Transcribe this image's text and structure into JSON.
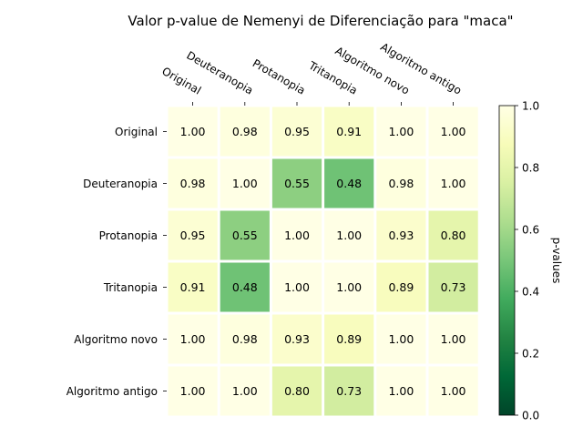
{
  "chart_data": {
    "type": "heatmap",
    "title": "Valor p-value de Nemenyi de Diferenciação para \"maca\"",
    "x_categories": [
      "Original",
      "Deuteranopia",
      "Protanopia",
      "Tritanopia",
      "Algoritmo novo",
      "Algoritmo antigo"
    ],
    "y_categories": [
      "Original",
      "Deuteranopia",
      "Protanopia",
      "Tritanopia",
      "Algoritmo novo",
      "Algoritmo antigo"
    ],
    "values": [
      [
        1.0,
        0.98,
        0.95,
        0.91,
        1.0,
        1.0
      ],
      [
        0.98,
        1.0,
        0.55,
        0.48,
        0.98,
        1.0
      ],
      [
        0.95,
        0.55,
        1.0,
        1.0,
        0.93,
        0.8
      ],
      [
        0.91,
        0.48,
        1.0,
        1.0,
        0.89,
        0.73
      ],
      [
        1.0,
        0.98,
        0.93,
        0.89,
        1.0,
        1.0
      ],
      [
        1.0,
        1.0,
        0.8,
        0.73,
        1.0,
        1.0
      ]
    ],
    "value_labels": [
      [
        "1.00",
        "0.98",
        "0.95",
        "0.91",
        "1.00",
        "1.00"
      ],
      [
        "0.98",
        "1.00",
        "0.55",
        "0.48",
        "0.98",
        "1.00"
      ],
      [
        "0.95",
        "0.55",
        "1.00",
        "1.00",
        "0.93",
        "0.80"
      ],
      [
        "0.91",
        "0.48",
        "1.00",
        "1.00",
        "0.89",
        "0.73"
      ],
      [
        "1.00",
        "0.98",
        "0.93",
        "0.89",
        "1.00",
        "1.00"
      ],
      [
        "1.00",
        "1.00",
        "0.80",
        "0.73",
        "1.00",
        "1.00"
      ]
    ],
    "colorbar": {
      "label": "p-values",
      "range": [
        0,
        1
      ],
      "ticks": [
        0.0,
        0.2,
        0.4,
        0.6,
        0.8,
        1.0
      ],
      "tick_labels": [
        "0.0",
        "0.2",
        "0.4",
        "0.6",
        "0.8",
        "1.0"
      ],
      "colormap": "YlGn_r",
      "stops": [
        "#004529",
        "#006837",
        "#238443",
        "#41ab5d",
        "#78c679",
        "#addd8e",
        "#d9f0a3",
        "#f7fcb9",
        "#ffffe5"
      ]
    },
    "x_axis_position": "top",
    "grid": false
  }
}
